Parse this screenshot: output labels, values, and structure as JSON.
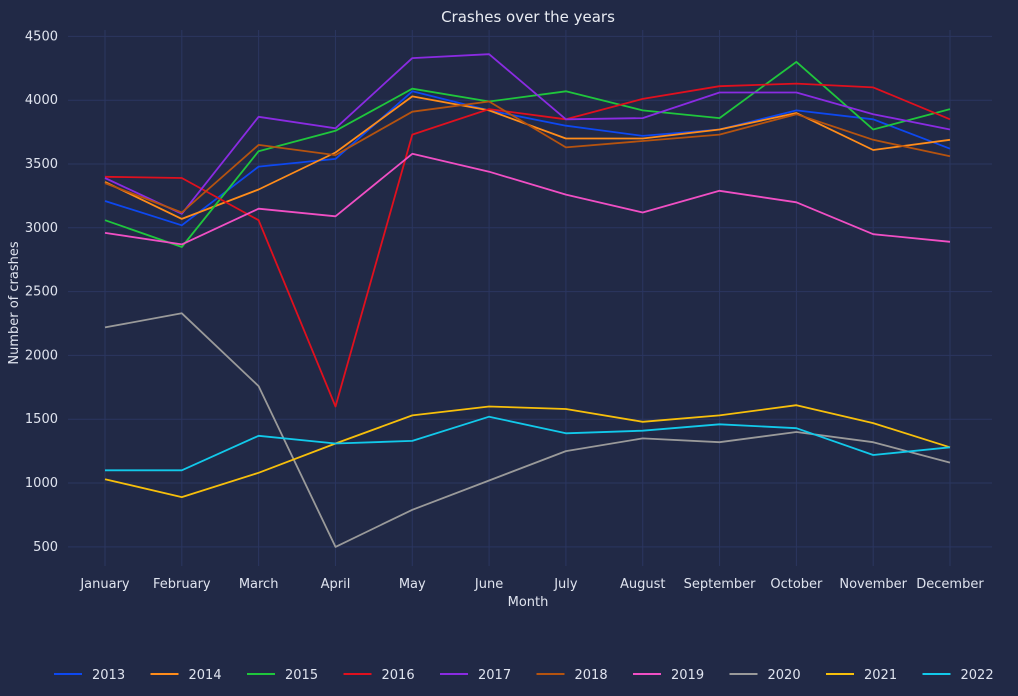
{
  "chart_data": {
    "type": "line",
    "title": "Crashes over the years",
    "xlabel": "Month",
    "ylabel": "Number of crashes",
    "categories": [
      "January",
      "February",
      "March",
      "April",
      "May",
      "June",
      "July",
      "August",
      "September",
      "October",
      "November",
      "December"
    ],
    "yticks": [
      500,
      1000,
      1500,
      2000,
      2500,
      3000,
      3500,
      4000,
      4500
    ],
    "ylim": [
      350,
      4550
    ],
    "grid": true,
    "legend_position": "bottom",
    "series": [
      {
        "name": "2013",
        "color": "#0d48f0",
        "values": [
          3210,
          3020,
          3480,
          3540,
          4070,
          3920,
          3800,
          3720,
          3770,
          3920,
          3850,
          3620
        ]
      },
      {
        "name": "2014",
        "color": "#ff8c1a",
        "values": [
          3360,
          3070,
          3300,
          3590,
          4030,
          3920,
          3700,
          3700,
          3770,
          3900,
          3610,
          3690
        ]
      },
      {
        "name": "2015",
        "color": "#1fc63c",
        "values": [
          3060,
          2850,
          3600,
          3760,
          4090,
          3990,
          4070,
          3920,
          3860,
          4300,
          3770,
          3930
        ]
      },
      {
        "name": "2016",
        "color": "#e0101e",
        "values": [
          3400,
          3390,
          3060,
          1600,
          3730,
          3930,
          3850,
          4010,
          4110,
          4130,
          4100,
          3850
        ]
      },
      {
        "name": "2017",
        "color": "#8a2be2",
        "values": [
          3390,
          3110,
          3870,
          3780,
          4330,
          4360,
          3850,
          3860,
          4060,
          4060,
          3890,
          3770
        ]
      },
      {
        "name": "2018",
        "color": "#b5530f",
        "values": [
          3350,
          3120,
          3650,
          3570,
          3910,
          3990,
          3630,
          3680,
          3730,
          3890,
          3690,
          3560
        ]
      },
      {
        "name": "2019",
        "color": "#f04fc4",
        "values": [
          2960,
          2870,
          3150,
          3090,
          3580,
          3440,
          3260,
          3120,
          3290,
          3200,
          2950,
          2890
        ]
      },
      {
        "name": "2020",
        "color": "#9a9a9a",
        "values": [
          2220,
          2330,
          1760,
          500,
          790,
          1020,
          1250,
          1350,
          1320,
          1400,
          1320,
          1160
        ]
      },
      {
        "name": "2021",
        "color": "#f7bf0b",
        "values": [
          1030,
          890,
          1080,
          1310,
          1530,
          1600,
          1580,
          1480,
          1530,
          1610,
          1470,
          1280
        ]
      },
      {
        "name": "2022",
        "color": "#12c9ea",
        "values": [
          1100,
          1100,
          1370,
          1310,
          1330,
          1520,
          1390,
          1410,
          1460,
          1430,
          1220,
          1280
        ]
      }
    ]
  }
}
